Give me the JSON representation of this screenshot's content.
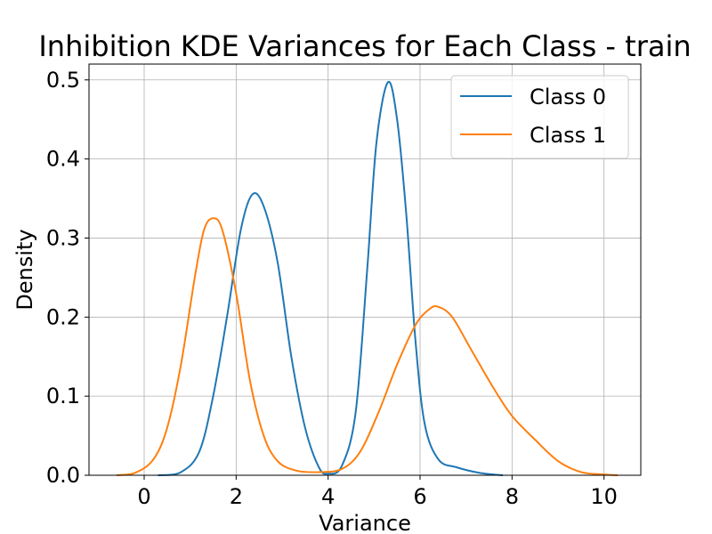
{
  "chart_data": {
    "type": "line",
    "title": "Inhibition KDE Variances for Each Class - train",
    "xlabel": "Variance",
    "ylabel": "Density",
    "xlim": [
      -1.2,
      10.8
    ],
    "ylim": [
      0.0,
      0.52
    ],
    "xticks": [
      0,
      2,
      4,
      6,
      8,
      10
    ],
    "yticks": [
      0.0,
      0.1,
      0.2,
      0.3,
      0.4,
      0.5
    ],
    "xtick_labels": [
      "0",
      "2",
      "4",
      "6",
      "8",
      "10"
    ],
    "ytick_labels": [
      "0.0",
      "0.1",
      "0.2",
      "0.3",
      "0.4",
      "0.5"
    ],
    "grid": true,
    "legend_position": "top-right",
    "series": [
      {
        "name": "Class 0",
        "color": "#1f77b4",
        "points": [
          [
            0.3,
            0.0
          ],
          [
            0.8,
            0.004
          ],
          [
            1.2,
            0.03
          ],
          [
            1.5,
            0.1
          ],
          [
            1.8,
            0.2
          ],
          [
            2.1,
            0.31
          ],
          [
            2.35,
            0.355
          ],
          [
            2.6,
            0.34
          ],
          [
            2.9,
            0.27
          ],
          [
            3.2,
            0.15
          ],
          [
            3.5,
            0.06
          ],
          [
            3.8,
            0.01
          ],
          [
            4.0,
            0.002
          ],
          [
            4.3,
            0.012
          ],
          [
            4.6,
            0.08
          ],
          [
            4.85,
            0.26
          ],
          [
            5.05,
            0.42
          ],
          [
            5.3,
            0.497
          ],
          [
            5.5,
            0.45
          ],
          [
            5.7,
            0.33
          ],
          [
            5.9,
            0.17
          ],
          [
            6.1,
            0.065
          ],
          [
            6.4,
            0.02
          ],
          [
            6.8,
            0.01
          ],
          [
            7.3,
            0.003
          ],
          [
            7.8,
            0.0
          ]
        ]
      },
      {
        "name": "Class 1",
        "color": "#ff7f0e",
        "points": [
          [
            -0.6,
            0.0
          ],
          [
            -0.2,
            0.003
          ],
          [
            0.2,
            0.02
          ],
          [
            0.5,
            0.06
          ],
          [
            0.8,
            0.14
          ],
          [
            1.1,
            0.25
          ],
          [
            1.3,
            0.31
          ],
          [
            1.5,
            0.325
          ],
          [
            1.7,
            0.31
          ],
          [
            2.0,
            0.23
          ],
          [
            2.3,
            0.12
          ],
          [
            2.6,
            0.05
          ],
          [
            2.9,
            0.018
          ],
          [
            3.3,
            0.006
          ],
          [
            3.8,
            0.004
          ],
          [
            4.3,
            0.008
          ],
          [
            4.7,
            0.03
          ],
          [
            5.1,
            0.08
          ],
          [
            5.5,
            0.14
          ],
          [
            5.9,
            0.19
          ],
          [
            6.2,
            0.21
          ],
          [
            6.4,
            0.213
          ],
          [
            6.7,
            0.2
          ],
          [
            7.1,
            0.16
          ],
          [
            7.6,
            0.11
          ],
          [
            8.0,
            0.075
          ],
          [
            8.5,
            0.045
          ],
          [
            9.0,
            0.018
          ],
          [
            9.5,
            0.004
          ],
          [
            10.0,
            0.001
          ],
          [
            10.3,
            0.0
          ]
        ]
      }
    ]
  }
}
